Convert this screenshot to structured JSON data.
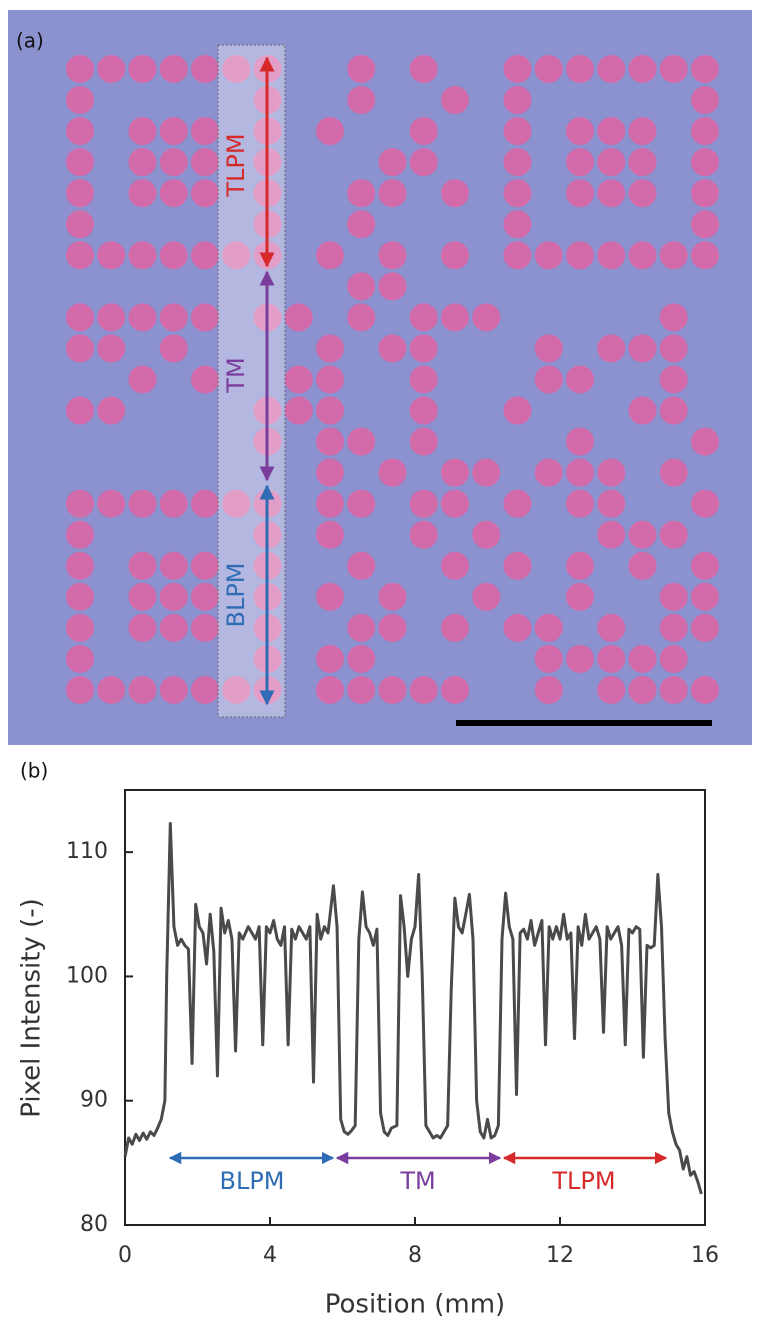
{
  "image": {
    "label": "(a)",
    "annotations": [
      "TLPM",
      "TM",
      "BLPM"
    ]
  },
  "chart_data": {
    "type": "line",
    "panel_label": "(b)",
    "xlabel": "Position (mm)",
    "ylabel": "Pixel Intensity (-)",
    "xlim": [
      0,
      16
    ],
    "ylim": [
      80,
      115
    ],
    "xticks": [
      0,
      4,
      8,
      12,
      16
    ],
    "yticks": [
      80,
      90,
      100,
      110
    ],
    "color": "#4a4a4a",
    "annotations": [
      "BLPM",
      "TM",
      "TLPM"
    ],
    "x": [
      0,
      0.1,
      0.2,
      0.3,
      0.4,
      0.5,
      0.6,
      0.7,
      0.8,
      0.9,
      1.0,
      1.1,
      1.15,
      1.25,
      1.35,
      1.45,
      1.55,
      1.65,
      1.75,
      1.85,
      1.95,
      2.05,
      2.15,
      2.25,
      2.35,
      2.45,
      2.55,
      2.65,
      2.75,
      2.85,
      2.95,
      3.05,
      3.15,
      3.25,
      3.4,
      3.5,
      3.6,
      3.7,
      3.8,
      3.9,
      4.0,
      4.1,
      4.2,
      4.3,
      4.4,
      4.5,
      4.6,
      4.7,
      4.8,
      4.9,
      5.0,
      5.1,
      5.2,
      5.3,
      5.4,
      5.5,
      5.6,
      5.75,
      5.85,
      5.95,
      6.05,
      6.15,
      6.25,
      6.35,
      6.45,
      6.55,
      6.65,
      6.75,
      6.85,
      6.95,
      7.05,
      7.15,
      7.25,
      7.35,
      7.5,
      7.6,
      7.7,
      7.8,
      7.9,
      8.0,
      8.1,
      8.2,
      8.3,
      8.4,
      8.5,
      8.6,
      8.7,
      8.8,
      8.9,
      9.0,
      9.1,
      9.2,
      9.3,
      9.4,
      9.5,
      9.6,
      9.7,
      9.8,
      9.9,
      10.0,
      10.1,
      10.2,
      10.3,
      10.4,
      10.5,
      10.6,
      10.7,
      10.8,
      10.9,
      11.0,
      11.1,
      11.2,
      11.3,
      11.4,
      11.5,
      11.6,
      11.7,
      11.8,
      11.9,
      12.0,
      12.1,
      12.2,
      12.3,
      12.4,
      12.5,
      12.6,
      12.7,
      12.8,
      12.9,
      13.0,
      13.1,
      13.2,
      13.3,
      13.4,
      13.5,
      13.6,
      13.7,
      13.8,
      13.9,
      14.0,
      14.1,
      14.2,
      14.3,
      14.4,
      14.5,
      14.6,
      14.7,
      14.8,
      14.9,
      15.0,
      15.1,
      15.2,
      15.3,
      15.4,
      15.5,
      15.6,
      15.7,
      15.8,
      15.9
    ],
    "values": [
      85.5,
      87,
      86.5,
      87.3,
      86.8,
      87.4,
      86.9,
      87.5,
      87.2,
      87.8,
      88.5,
      90,
      100,
      112.3,
      104,
      102.5,
      103,
      102.5,
      102.2,
      93,
      105.8,
      104,
      103.5,
      101,
      105,
      102,
      92,
      105.5,
      103.5,
      104.5,
      103,
      94,
      103.5,
      103,
      104,
      103.5,
      103,
      104,
      94.5,
      104,
      103.5,
      104.5,
      103,
      102.5,
      104,
      94.5,
      103.8,
      103,
      104,
      103.5,
      103,
      104,
      91.5,
      105,
      103,
      104,
      103.5,
      107.3,
      104,
      88.5,
      87.5,
      87.3,
      87.6,
      88,
      103,
      106.8,
      104,
      103.5,
      102.5,
      103.8,
      89,
      87.5,
      87.2,
      87.8,
      88,
      106.5,
      104,
      100,
      103,
      104,
      108.2,
      100,
      88,
      87.5,
      87,
      87.2,
      87,
      87.5,
      88,
      99,
      106.3,
      104,
      103.5,
      105,
      106.6,
      103,
      90,
      87.5,
      87,
      88.5,
      87,
      87.2,
      88,
      103,
      106.7,
      104,
      103,
      90.5,
      103.5,
      103.8,
      103,
      104.5,
      102.5,
      103.5,
      104.5,
      94.5,
      104,
      103,
      104,
      103,
      105,
      103,
      103.5,
      95,
      104,
      102.5,
      105,
      103,
      103.5,
      104,
      103,
      95.5,
      104,
      103,
      103.5,
      104,
      102.5,
      94.5,
      103.8,
      103.5,
      104,
      103.8,
      93.5,
      102.5,
      102.3,
      102.5,
      108.2,
      104,
      95,
      89,
      87.5,
      86.5,
      86,
      84.5,
      85.5,
      84,
      84.3,
      83.5,
      82.5
    ]
  }
}
